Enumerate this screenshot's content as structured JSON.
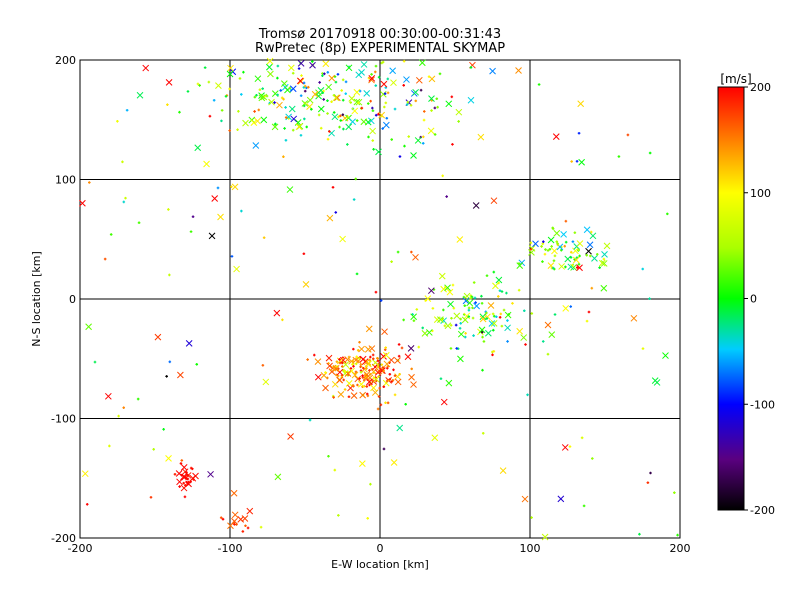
{
  "chart_data": {
    "type": "scatter",
    "title": "Tromsø 20170918 00:30:00-00:31:43",
    "subtitle": "RwPretec (8p) EXPERIMENTAL SKYMAP",
    "xlabel": "E-W location [km]",
    "ylabel": "N-S location [km]",
    "xlim": [
      -200,
      200
    ],
    "ylim": [
      -200,
      200
    ],
    "xticks": [
      "-200",
      "-100",
      "0",
      "100",
      "200"
    ],
    "yticks": [
      "-200",
      "-100",
      "0",
      "100",
      "200"
    ],
    "grid": true,
    "colorbar": {
      "label": "[m/s]",
      "range": [
        -200,
        200
      ],
      "ticks": [
        "-200",
        "-100",
        "0",
        "100",
        "200"
      ],
      "colormap": "black-purple-blue-cyan-green-yellow-red"
    },
    "clusters": [
      {
        "center": [
          -30,
          170
        ],
        "spread": [
          40,
          22
        ],
        "count": 260,
        "value_mean": 20,
        "value_spread": 140
      },
      {
        "center": [
          -10,
          -60
        ],
        "spread": [
          14,
          10
        ],
        "count": 190,
        "value_mean": 150,
        "value_spread": 70
      },
      {
        "center": [
          60,
          -10
        ],
        "spread": [
          22,
          14
        ],
        "count": 110,
        "value_mean": 30,
        "value_spread": 90
      },
      {
        "center": [
          125,
          38
        ],
        "spread": [
          14,
          9
        ],
        "count": 70,
        "value_mean": 20,
        "value_spread": 120
      },
      {
        "center": [
          -129,
          -150
        ],
        "spread": [
          4,
          6
        ],
        "count": 28,
        "value_mean": 195,
        "value_spread": 8
      },
      {
        "center": [
          -95,
          -185
        ],
        "spread": [
          8,
          6
        ],
        "count": 14,
        "value_mean": 180,
        "value_spread": 30
      },
      {
        "center": [
          0,
          0
        ],
        "spread": [
          170,
          170
        ],
        "count": 170,
        "value_mean": 40,
        "value_spread": 200
      }
    ],
    "marker_legend": {
      "x_mark": "cross",
      "dot_mark": "plus"
    }
  }
}
